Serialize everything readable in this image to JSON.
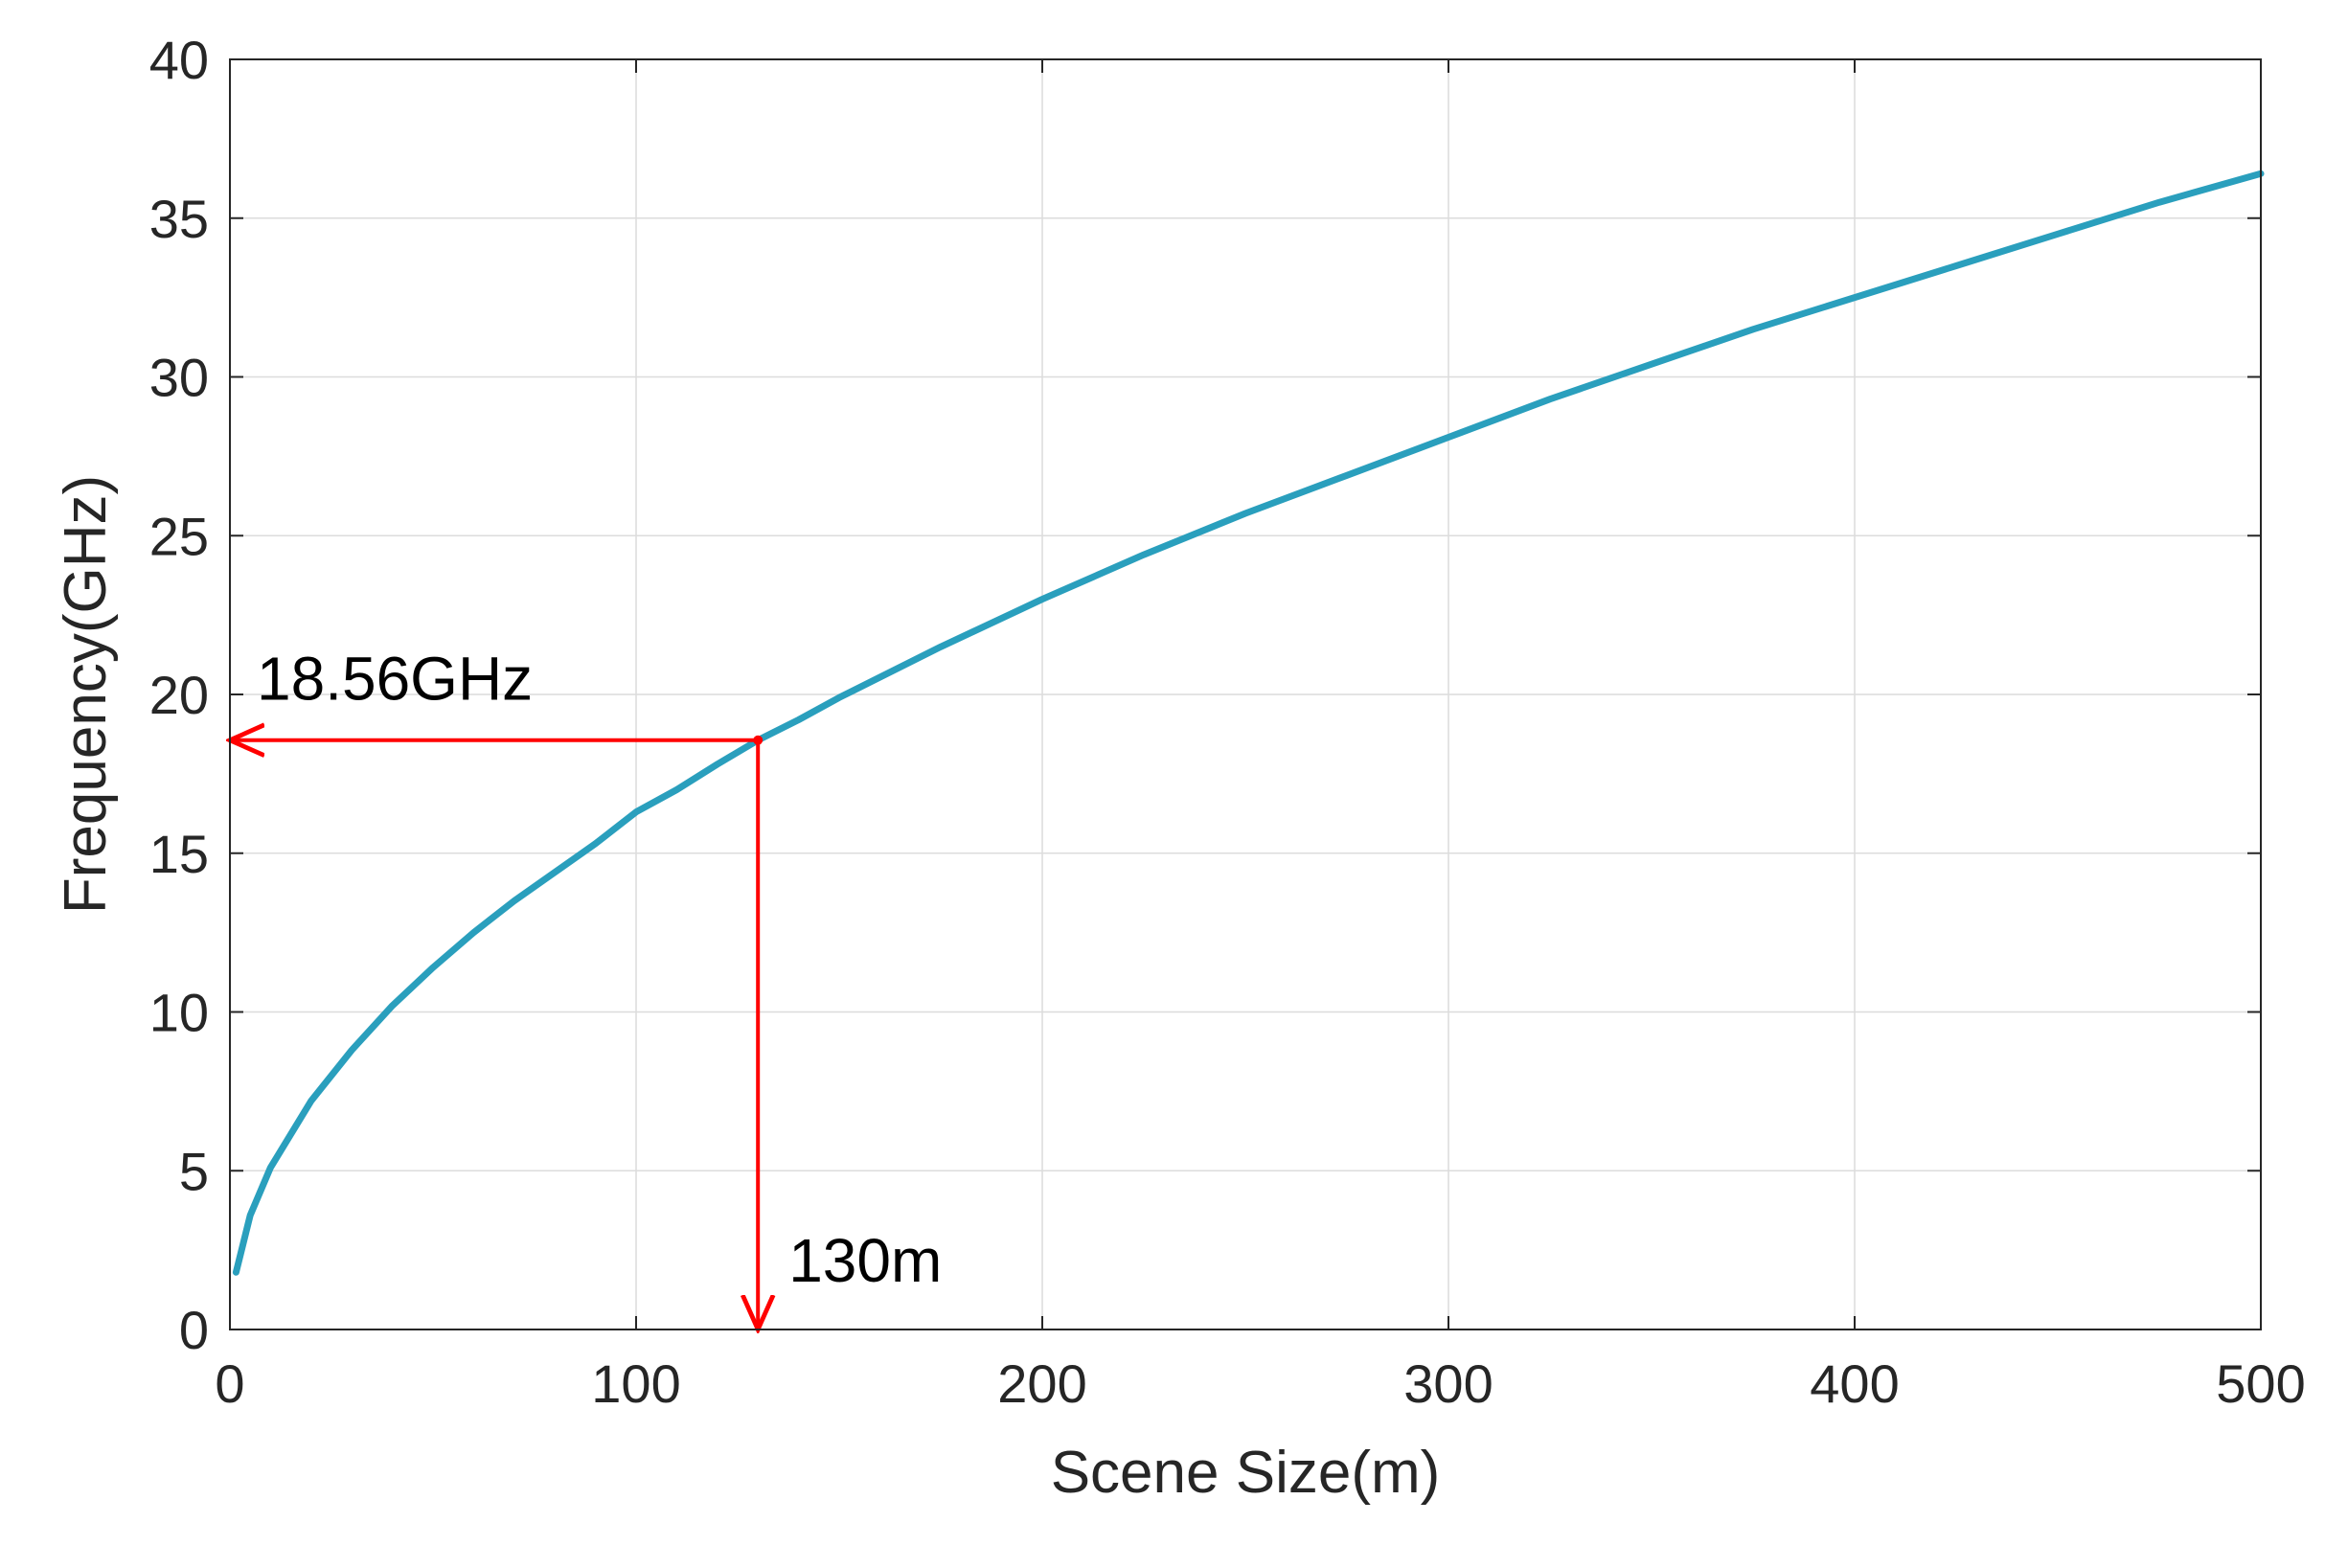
{
  "chart_data": {
    "type": "line",
    "title": "",
    "xlabel": "Scene Size(m)",
    "ylabel": "Frequency(GHz)",
    "xlim": [
      0,
      500
    ],
    "ylim": [
      0,
      40
    ],
    "x_ticks": [
      0,
      100,
      200,
      300,
      400,
      500
    ],
    "y_ticks": [
      0,
      5,
      10,
      15,
      20,
      25,
      30,
      35,
      40
    ],
    "x_tick_labels": [
      "0",
      "100",
      "200",
      "300",
      "400",
      "500"
    ],
    "y_tick_labels": [
      "0",
      "5",
      "10",
      "15",
      "20",
      "25",
      "30",
      "35",
      "40"
    ],
    "grid": true,
    "series": [
      {
        "color": "#2a9fbd",
        "x": [
          1.5,
          5,
          10,
          20,
          30,
          40,
          50,
          60,
          70,
          80,
          90,
          100,
          110,
          120,
          130,
          140,
          150,
          175,
          200,
          225,
          250,
          275,
          300,
          325,
          350,
          375,
          400,
          425,
          450,
          475,
          500
        ],
        "y": [
          1.8,
          3.6,
          5.1,
          7.2,
          8.8,
          10.2,
          11.4,
          12.5,
          13.5,
          14.4,
          15.3,
          16.3,
          17.0,
          17.8,
          18.56,
          19.2,
          19.9,
          21.5,
          23.0,
          24.4,
          25.7,
          26.9,
          28.1,
          29.3,
          30.4,
          31.5,
          32.5,
          33.5,
          34.5,
          35.5,
          36.4
        ]
      }
    ],
    "annotations": [
      {
        "text": "18.56GHz",
        "color": "#ff0000",
        "point": [
          130,
          18.56
        ],
        "arrow_to": [
          0,
          18.56
        ]
      },
      {
        "text": "130m",
        "color": "#ff0000",
        "point": [
          130,
          18.56
        ],
        "arrow_to": [
          130,
          0
        ]
      }
    ]
  }
}
